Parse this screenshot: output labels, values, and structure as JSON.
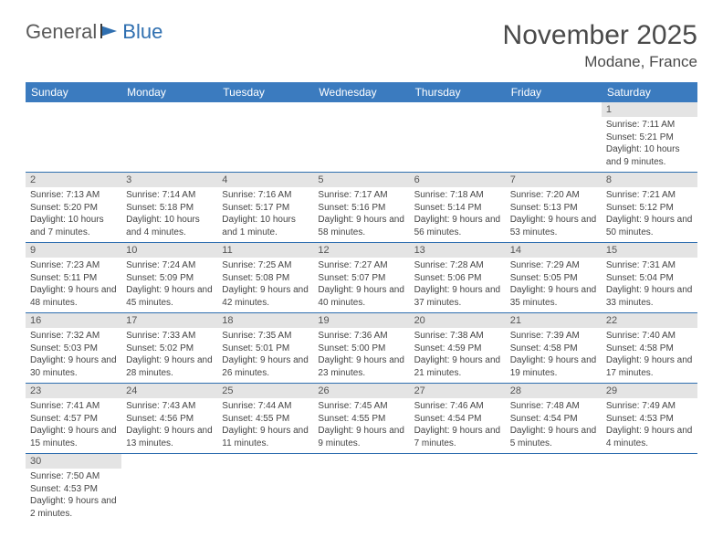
{
  "logo": {
    "text1": "General",
    "text2": "Blue"
  },
  "title": "November 2025",
  "location": "Modane, France",
  "colors": {
    "header_bg": "#3b7bbf",
    "header_text": "#ffffff",
    "daynum_bg": "#e4e4e4",
    "row_border": "#2f6fb0",
    "logo_blue": "#2f6fb0",
    "body_text": "#444444"
  },
  "day_headers": [
    "Sunday",
    "Monday",
    "Tuesday",
    "Wednesday",
    "Thursday",
    "Friday",
    "Saturday"
  ],
  "weeks": [
    [
      null,
      null,
      null,
      null,
      null,
      null,
      {
        "n": "1",
        "sr": "Sunrise: 7:11 AM",
        "ss": "Sunset: 5:21 PM",
        "dl": "Daylight: 10 hours and 9 minutes."
      }
    ],
    [
      {
        "n": "2",
        "sr": "Sunrise: 7:13 AM",
        "ss": "Sunset: 5:20 PM",
        "dl": "Daylight: 10 hours and 7 minutes."
      },
      {
        "n": "3",
        "sr": "Sunrise: 7:14 AM",
        "ss": "Sunset: 5:18 PM",
        "dl": "Daylight: 10 hours and 4 minutes."
      },
      {
        "n": "4",
        "sr": "Sunrise: 7:16 AM",
        "ss": "Sunset: 5:17 PM",
        "dl": "Daylight: 10 hours and 1 minute."
      },
      {
        "n": "5",
        "sr": "Sunrise: 7:17 AM",
        "ss": "Sunset: 5:16 PM",
        "dl": "Daylight: 9 hours and 58 minutes."
      },
      {
        "n": "6",
        "sr": "Sunrise: 7:18 AM",
        "ss": "Sunset: 5:14 PM",
        "dl": "Daylight: 9 hours and 56 minutes."
      },
      {
        "n": "7",
        "sr": "Sunrise: 7:20 AM",
        "ss": "Sunset: 5:13 PM",
        "dl": "Daylight: 9 hours and 53 minutes."
      },
      {
        "n": "8",
        "sr": "Sunrise: 7:21 AM",
        "ss": "Sunset: 5:12 PM",
        "dl": "Daylight: 9 hours and 50 minutes."
      }
    ],
    [
      {
        "n": "9",
        "sr": "Sunrise: 7:23 AM",
        "ss": "Sunset: 5:11 PM",
        "dl": "Daylight: 9 hours and 48 minutes."
      },
      {
        "n": "10",
        "sr": "Sunrise: 7:24 AM",
        "ss": "Sunset: 5:09 PM",
        "dl": "Daylight: 9 hours and 45 minutes."
      },
      {
        "n": "11",
        "sr": "Sunrise: 7:25 AM",
        "ss": "Sunset: 5:08 PM",
        "dl": "Daylight: 9 hours and 42 minutes."
      },
      {
        "n": "12",
        "sr": "Sunrise: 7:27 AM",
        "ss": "Sunset: 5:07 PM",
        "dl": "Daylight: 9 hours and 40 minutes."
      },
      {
        "n": "13",
        "sr": "Sunrise: 7:28 AM",
        "ss": "Sunset: 5:06 PM",
        "dl": "Daylight: 9 hours and 37 minutes."
      },
      {
        "n": "14",
        "sr": "Sunrise: 7:29 AM",
        "ss": "Sunset: 5:05 PM",
        "dl": "Daylight: 9 hours and 35 minutes."
      },
      {
        "n": "15",
        "sr": "Sunrise: 7:31 AM",
        "ss": "Sunset: 5:04 PM",
        "dl": "Daylight: 9 hours and 33 minutes."
      }
    ],
    [
      {
        "n": "16",
        "sr": "Sunrise: 7:32 AM",
        "ss": "Sunset: 5:03 PM",
        "dl": "Daylight: 9 hours and 30 minutes."
      },
      {
        "n": "17",
        "sr": "Sunrise: 7:33 AM",
        "ss": "Sunset: 5:02 PM",
        "dl": "Daylight: 9 hours and 28 minutes."
      },
      {
        "n": "18",
        "sr": "Sunrise: 7:35 AM",
        "ss": "Sunset: 5:01 PM",
        "dl": "Daylight: 9 hours and 26 minutes."
      },
      {
        "n": "19",
        "sr": "Sunrise: 7:36 AM",
        "ss": "Sunset: 5:00 PM",
        "dl": "Daylight: 9 hours and 23 minutes."
      },
      {
        "n": "20",
        "sr": "Sunrise: 7:38 AM",
        "ss": "Sunset: 4:59 PM",
        "dl": "Daylight: 9 hours and 21 minutes."
      },
      {
        "n": "21",
        "sr": "Sunrise: 7:39 AM",
        "ss": "Sunset: 4:58 PM",
        "dl": "Daylight: 9 hours and 19 minutes."
      },
      {
        "n": "22",
        "sr": "Sunrise: 7:40 AM",
        "ss": "Sunset: 4:58 PM",
        "dl": "Daylight: 9 hours and 17 minutes."
      }
    ],
    [
      {
        "n": "23",
        "sr": "Sunrise: 7:41 AM",
        "ss": "Sunset: 4:57 PM",
        "dl": "Daylight: 9 hours and 15 minutes."
      },
      {
        "n": "24",
        "sr": "Sunrise: 7:43 AM",
        "ss": "Sunset: 4:56 PM",
        "dl": "Daylight: 9 hours and 13 minutes."
      },
      {
        "n": "25",
        "sr": "Sunrise: 7:44 AM",
        "ss": "Sunset: 4:55 PM",
        "dl": "Daylight: 9 hours and 11 minutes."
      },
      {
        "n": "26",
        "sr": "Sunrise: 7:45 AM",
        "ss": "Sunset: 4:55 PM",
        "dl": "Daylight: 9 hours and 9 minutes."
      },
      {
        "n": "27",
        "sr": "Sunrise: 7:46 AM",
        "ss": "Sunset: 4:54 PM",
        "dl": "Daylight: 9 hours and 7 minutes."
      },
      {
        "n": "28",
        "sr": "Sunrise: 7:48 AM",
        "ss": "Sunset: 4:54 PM",
        "dl": "Daylight: 9 hours and 5 minutes."
      },
      {
        "n": "29",
        "sr": "Sunrise: 7:49 AM",
        "ss": "Sunset: 4:53 PM",
        "dl": "Daylight: 9 hours and 4 minutes."
      }
    ],
    [
      {
        "n": "30",
        "sr": "Sunrise: 7:50 AM",
        "ss": "Sunset: 4:53 PM",
        "dl": "Daylight: 9 hours and 2 minutes."
      },
      null,
      null,
      null,
      null,
      null,
      null
    ]
  ]
}
